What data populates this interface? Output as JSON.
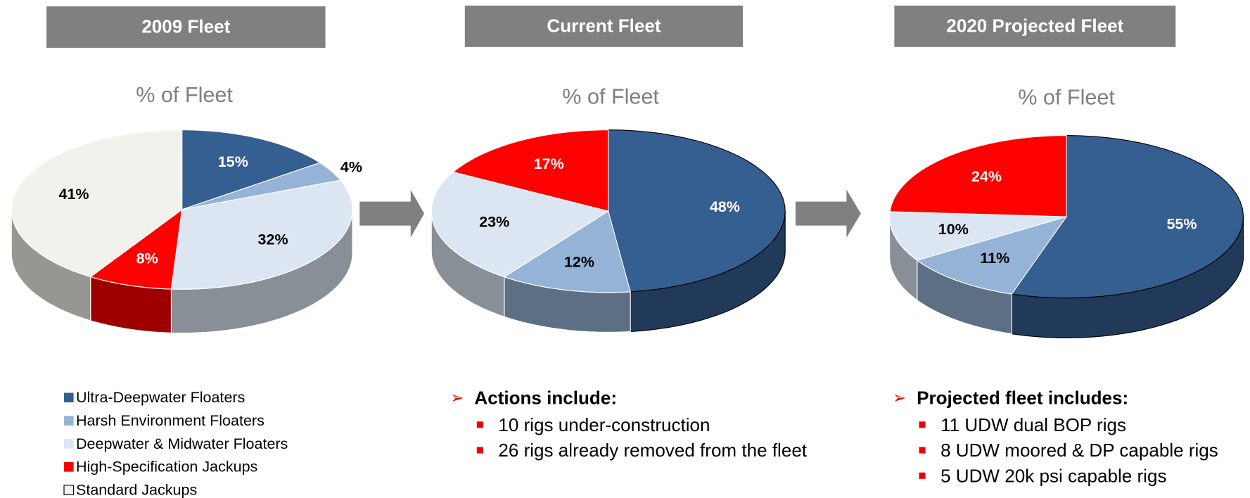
{
  "legend": {
    "categories": [
      "Ultra-Deepwater Floaters",
      "Harsh Environment Floaters",
      "Deepwater & Midwater Floaters",
      "High-Specification Jackups",
      "Standard Jackups"
    ],
    "colors": [
      "#355e91",
      "#95b3d7",
      "#dce6f2",
      "#ff0000",
      "#f2f2ec"
    ]
  },
  "chart_data": [
    {
      "type": "pie",
      "title": "2009 Fleet",
      "subtitle": "% of Fleet",
      "values": [
        15,
        4,
        32,
        8,
        41
      ],
      "value_labels": [
        "15%",
        "4%",
        "32%",
        "8%",
        "41%"
      ]
    },
    {
      "type": "pie",
      "title": "Current Fleet",
      "subtitle": "% of Fleet",
      "values": [
        48,
        12,
        23,
        17
      ],
      "value_labels": [
        "48%",
        "12%",
        "23%",
        "17%"
      ],
      "note_title": "Actions include:",
      "notes": [
        "10 rigs under-construction",
        "26 rigs already removed from the fleet"
      ]
    },
    {
      "type": "pie",
      "title": "2020 Projected Fleet",
      "subtitle": "% of Fleet",
      "values": [
        55,
        11,
        10,
        24
      ],
      "value_labels": [
        "55%",
        "11%",
        "10%",
        "24%"
      ],
      "note_title": "Projected fleet includes:",
      "notes": [
        "11 UDW dual BOP rigs",
        "8 UDW moored & DP capable rigs",
        "5 UDW 20k psi capable rigs"
      ]
    }
  ]
}
